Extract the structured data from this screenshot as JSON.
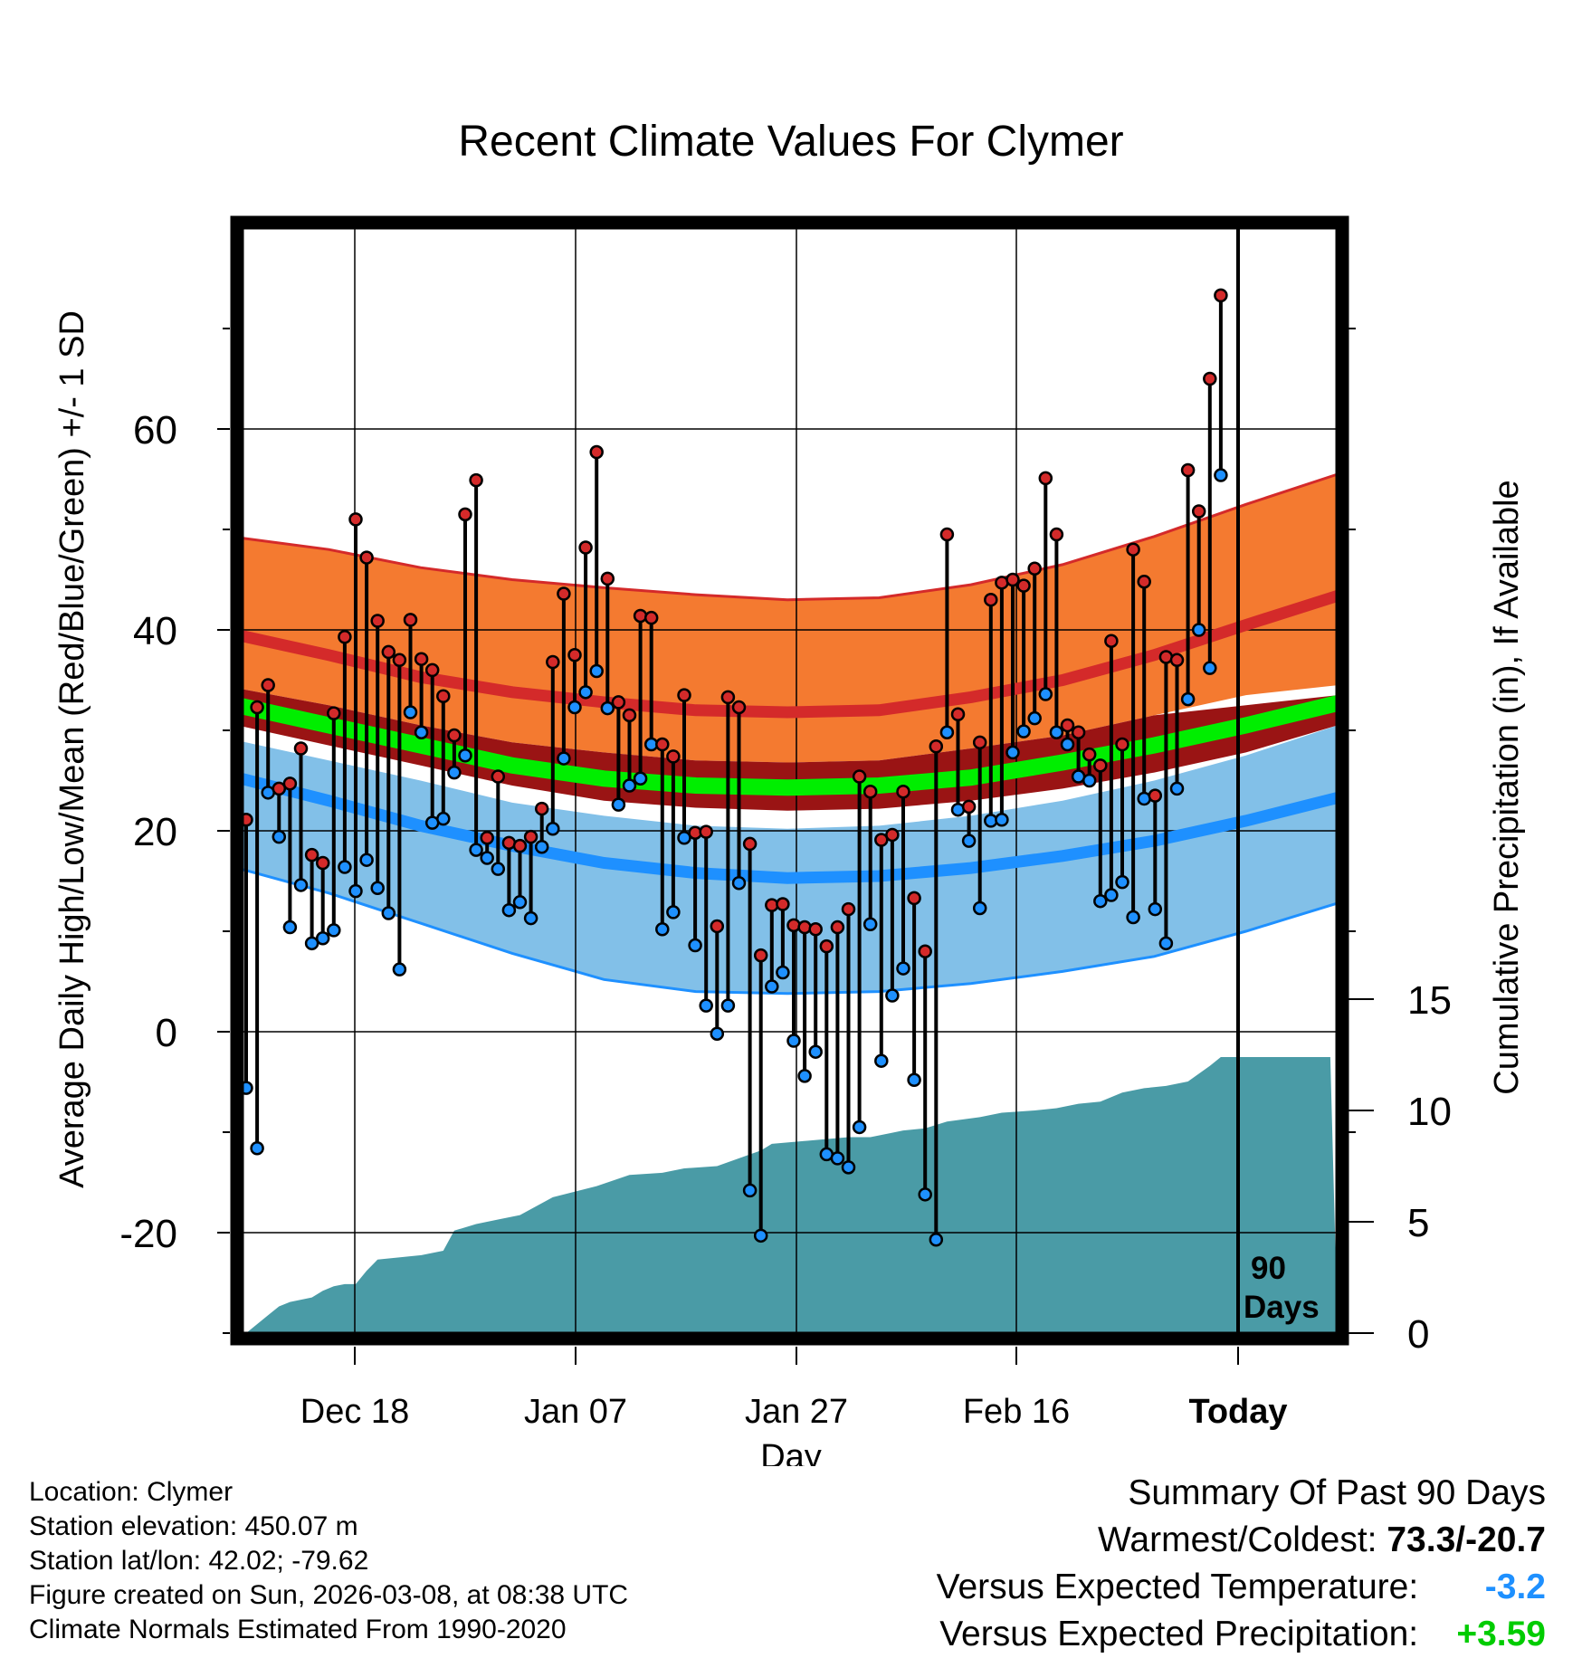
{
  "chart_data": {
    "type": "line",
    "title": "Recent Climate Values For Clymer",
    "xlabel": "Day",
    "ylabel": "Average Daily High/Low/Mean (Red/Blue/Green) +/- 1 SD",
    "y2label": "Cumulative Precipitation (in), If Available",
    "ylim": [
      -30,
      80
    ],
    "y_ticks": [
      "60",
      "40",
      "20",
      "0",
      "-20"
    ],
    "y2_ticks": [
      "15",
      "10",
      "5",
      "0"
    ],
    "x_ticks": [
      "Dec 18",
      "Jan 07",
      "Jan 27",
      "Feb 16",
      "Today"
    ],
    "today_marker": "90 Days",
    "normals": {
      "high_plus_sd": [
        49.2,
        48,
        46.2,
        45,
        44.2,
        43.5,
        43,
        43.2,
        44.5,
        46.5,
        49.3,
        52.5,
        55.5
      ],
      "high_mean": [
        39.5,
        37.5,
        35.3,
        33.8,
        32.8,
        32,
        31.8,
        32,
        33.3,
        35,
        37.5,
        40.5,
        43.4
      ],
      "high_minus_sd": [
        34.2,
        32.5,
        30.5,
        28.8,
        27.8,
        27,
        26.8,
        27,
        28.2,
        29.5,
        31.5,
        33.5,
        34.5
      ],
      "mean_plus_sd": [
        34.2,
        32.5,
        30.5,
        28.8,
        27.8,
        27,
        26.8,
        27,
        28.2,
        29.5,
        31.5,
        32.5,
        33.5
      ],
      "mean_mean": [
        32.5,
        30.5,
        28.5,
        26.5,
        25.2,
        24.5,
        24.3,
        24.5,
        25.3,
        26.8,
        28.5,
        30.5,
        32.7
      ],
      "mean_minus_sd": [
        30.5,
        28.5,
        26.5,
        24.5,
        23,
        22.3,
        22,
        22.2,
        23,
        24.2,
        25.8,
        27.8,
        30.5
      ],
      "low_plus_sd": [
        29,
        27,
        25,
        22.8,
        21.5,
        20.5,
        20.2,
        20.5,
        21.5,
        23,
        25,
        27.5,
        30.5
      ],
      "low_mean": [
        25.3,
        23,
        20.5,
        18.5,
        16.8,
        15.8,
        15.3,
        15.5,
        16.3,
        17.5,
        19,
        21,
        23.3
      ],
      "low_minus_sd": [
        16.3,
        13.8,
        10.8,
        7.8,
        5.2,
        4,
        3.8,
        4,
        4.8,
        6,
        7.5,
        10,
        12.8
      ]
    },
    "daily_high": [
      21.1,
      32.3,
      34.5,
      24.2,
      24.7,
      28.2,
      17.6,
      16.8,
      31.7,
      39.3,
      51,
      47.2,
      40.9,
      37.8,
      37,
      41,
      37.1,
      36,
      33.4,
      29.5,
      51.5,
      54.9,
      19.3,
      25.4,
      18.8,
      18.5,
      19.4,
      22.2,
      36.8,
      43.6,
      37.5,
      48.2,
      57.7,
      45.1,
      32.8,
      31.5,
      41.4,
      41.2,
      28.6,
      27.4,
      33.5,
      19.8,
      19.9,
      10.5,
      33.3,
      32.3,
      18.7,
      7.6,
      12.6,
      12.7,
      10.6,
      10.4,
      10.2,
      8.5,
      10.4,
      12.2,
      25.4,
      23.9,
      19.1,
      19.6,
      23.9,
      13.3,
      8,
      28.4,
      49.5,
      31.6,
      22.4,
      28.8,
      43,
      44.7,
      45,
      44.4,
      46.1,
      55.1,
      49.5,
      30.5,
      29.8,
      27.6,
      26.5,
      38.9,
      28.6,
      48,
      44.8,
      23.5,
      37.3,
      37,
      55.9,
      51.8,
      65,
      73.3
    ],
    "daily_low": [
      -5.6,
      -11.6,
      23.8,
      19.4,
      10.4,
      14.6,
      8.8,
      9.3,
      10.1,
      16.4,
      14,
      17.1,
      14.3,
      11.8,
      6.2,
      31.8,
      29.8,
      20.8,
      21.2,
      25.8,
      27.5,
      18.1,
      17.3,
      16.2,
      12.1,
      12.9,
      11.3,
      18.4,
      20.2,
      27.2,
      32.3,
      33.8,
      35.9,
      32.2,
      22.6,
      24.5,
      25.2,
      28.6,
      10.2,
      11.9,
      19.3,
      8.6,
      2.6,
      -0.2,
      2.6,
      14.8,
      -15.8,
      -20.3,
      4.5,
      5.9,
      -0.9,
      -4.4,
      -2,
      -12.2,
      -12.6,
      -13.5,
      -9.5,
      10.7,
      -2.9,
      3.6,
      6.3,
      -4.8,
      -16.2,
      -20.7,
      29.8,
      22.1,
      19,
      12.3,
      21,
      21.1,
      27.8,
      29.9,
      31.2,
      33.6,
      29.8,
      28.6,
      25.4,
      25,
      13,
      13.6,
      14.9,
      11.4,
      23.2,
      12.2,
      8.8,
      24.2,
      33.1,
      40,
      36.2,
      55.4
    ],
    "cumulative_precip": [
      0,
      0.8,
      1.2,
      1.4,
      1.6,
      1.9,
      2.1,
      2.2,
      2.2,
      2.8,
      3.3,
      3.5,
      3.7,
      4.6,
      4.9,
      5.1,
      5.3,
      6.1,
      6.6,
      7.1,
      7.2,
      7.4,
      7.5,
      8.2,
      8.5,
      8.8,
      8.8,
      9,
      9.1,
      9.2,
      9.5,
      9.7,
      9.9,
      10,
      10.1,
      10.3,
      10.4,
      10.6,
      10.8,
      11,
      11.1,
      11.3,
      12.0,
      12.4,
      12.4,
      12.4,
      12.4
    ],
    "precip_x": [
      0,
      2,
      3,
      4,
      6,
      7,
      8,
      9,
      10,
      11,
      12,
      16,
      18,
      19,
      21,
      23,
      25,
      28,
      32,
      35,
      38,
      40,
      43,
      47,
      48,
      55,
      57,
      59,
      60,
      62,
      64,
      67,
      69,
      72,
      74,
      76,
      78,
      79,
      80,
      82,
      84,
      86,
      88,
      89,
      90,
      91,
      99
    ],
    "precip_values_note": "cumulative totals in inches"
  },
  "info": {
    "location": "Location: Clymer",
    "elevation": "Station elevation: 450.07 m",
    "latlon": "Station lat/lon: 42.02; -79.62",
    "created": "Figure created on Sun, 2026-03-08, at 08:38 UTC",
    "normals": "Climate Normals Estimated From 1990-2020"
  },
  "summary": {
    "title": "Summary Of Past 90 Days",
    "warm_cold_label": "Warmest/Coldest:",
    "warm_cold_value": "73.3/-20.7",
    "temp_label": "Versus Expected Temperature:",
    "temp_value": "-3.2",
    "precip_label": "Versus Expected Precipitation:",
    "precip_value": "+3.59"
  },
  "colors": {
    "high_band": "#f47a30",
    "high_line": "#d42a2a",
    "mean_band": "#9a1414",
    "mean_line": "#00ee00",
    "low_band": "#82c0e8",
    "low_line": "#1e90ff",
    "precip": "#4a9ba6",
    "temp_value": "#1e90ff",
    "precip_value": "#00cc00"
  }
}
